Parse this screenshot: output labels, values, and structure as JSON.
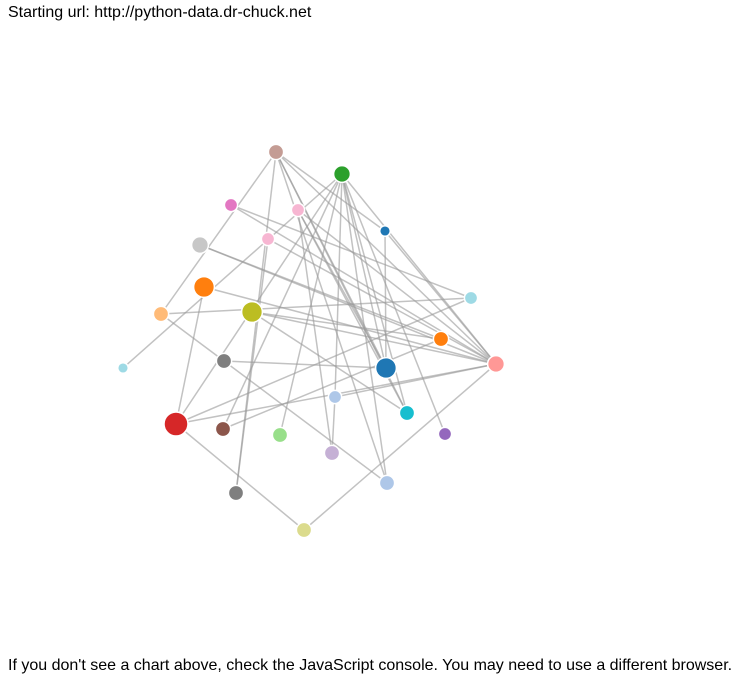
{
  "header": {
    "label": "Starting url:",
    "url": "http://python-data.dr-chuck.net"
  },
  "footer": {
    "message": "If you don't see a chart above, check the JavaScript console. You may need to use a different browser."
  },
  "graph": {
    "nodes": [
      {
        "id": "n0",
        "color": "#c49c94",
        "rank": 3
      },
      {
        "id": "n1",
        "color": "#2ca02c",
        "rank": 4
      },
      {
        "id": "n2",
        "color": "#e377c2",
        "rank": 2
      },
      {
        "id": "n3",
        "color": "#f7b6d2",
        "rank": 2
      },
      {
        "id": "n4",
        "color": "#1f77b4",
        "rank": 1
      },
      {
        "id": "n5",
        "color": "#f7b6d2",
        "rank": 2
      },
      {
        "id": "n6",
        "color": "#c7c7c7",
        "rank": 4
      },
      {
        "id": "n7",
        "color": "#ff7f0e",
        "rank": 7
      },
      {
        "id": "n8",
        "color": "#bcbd22",
        "rank": 7
      },
      {
        "id": "n9",
        "color": "#9edae5",
        "rank": 2
      },
      {
        "id": "n10",
        "color": "#ffbb78",
        "rank": 3
      },
      {
        "id": "n11",
        "color": "#ff7f0e",
        "rank": 3
      },
      {
        "id": "n12",
        "color": "#7f7f7f",
        "rank": 3
      },
      {
        "id": "n13",
        "color": "#1f77b4",
        "rank": 7
      },
      {
        "id": "n14",
        "color": "#ff9896",
        "rank": 4
      },
      {
        "id": "n15",
        "color": "#9edae5",
        "rank": 1
      },
      {
        "id": "n16",
        "color": "#aec7e8",
        "rank": 2
      },
      {
        "id": "n17",
        "color": "#17becf",
        "rank": 3
      },
      {
        "id": "n18",
        "color": "#d62728",
        "rank": 10
      },
      {
        "id": "n19",
        "color": "#8c564b",
        "rank": 3
      },
      {
        "id": "n20",
        "color": "#98df8a",
        "rank": 3
      },
      {
        "id": "n21",
        "color": "#c5b0d5",
        "rank": 3
      },
      {
        "id": "n22",
        "color": "#9467bd",
        "rank": 2
      },
      {
        "id": "n23",
        "color": "#7f7f7f",
        "rank": 3
      },
      {
        "id": "n24",
        "color": "#aec7e8",
        "rank": 3
      },
      {
        "id": "n25",
        "color": "#dbdb8d",
        "rank": 3
      }
    ],
    "links": [
      [
        "n0",
        "n14"
      ],
      [
        "n0",
        "n4"
      ],
      [
        "n0",
        "n13"
      ],
      [
        "n0",
        "n17"
      ],
      [
        "n0",
        "n24"
      ],
      [
        "n0",
        "n10"
      ],
      [
        "n0",
        "n23"
      ],
      [
        "n1",
        "n14"
      ],
      [
        "n1",
        "n13"
      ],
      [
        "n1",
        "n17"
      ],
      [
        "n1",
        "n22"
      ],
      [
        "n1",
        "n24"
      ],
      [
        "n1",
        "n16"
      ],
      [
        "n1",
        "n19"
      ],
      [
        "n1",
        "n20"
      ],
      [
        "n1",
        "n18"
      ],
      [
        "n1",
        "n15"
      ],
      [
        "n2",
        "n14"
      ],
      [
        "n2",
        "n9"
      ],
      [
        "n3",
        "n21"
      ],
      [
        "n3",
        "n13"
      ],
      [
        "n3",
        "n14"
      ],
      [
        "n3",
        "n17"
      ],
      [
        "n4",
        "n13"
      ],
      [
        "n4",
        "n14"
      ],
      [
        "n5",
        "n23"
      ],
      [
        "n5",
        "n14"
      ],
      [
        "n6",
        "n14"
      ],
      [
        "n6",
        "n11"
      ],
      [
        "n7",
        "n14"
      ],
      [
        "n7",
        "n18"
      ],
      [
        "n8",
        "n14"
      ],
      [
        "n8",
        "n11"
      ],
      [
        "n8",
        "n17"
      ],
      [
        "n9",
        "n18"
      ],
      [
        "n9",
        "n10"
      ],
      [
        "n10",
        "n12"
      ],
      [
        "n12",
        "n13"
      ],
      [
        "n12",
        "n24"
      ],
      [
        "n11",
        "n19"
      ],
      [
        "n14",
        "n18"
      ],
      [
        "n14",
        "n16"
      ],
      [
        "n14",
        "n25"
      ],
      [
        "n16",
        "n21"
      ],
      [
        "n25",
        "n18"
      ]
    ]
  }
}
